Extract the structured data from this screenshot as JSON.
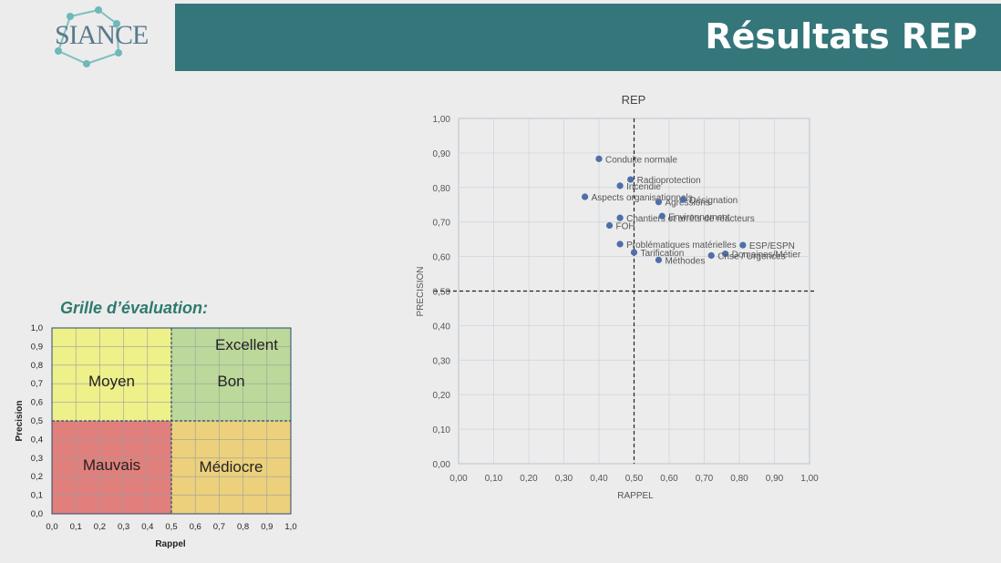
{
  "header": {
    "logo": "SIANCE",
    "title": "Résultats REP"
  },
  "colors": {
    "band": "#34767a",
    "point": "#4f6fa8"
  },
  "grille": {
    "title": "Grille d’évaluation:",
    "xlabel": "Rappel",
    "ylabel": "Precision",
    "ticks": [
      "0,0",
      "0,1",
      "0,2",
      "0,3",
      "0,4",
      "0,5",
      "0,6",
      "0,7",
      "0,8",
      "0,9",
      "1,0"
    ],
    "zones": {
      "excellent": "Excellent",
      "moyen": "Moyen",
      "bon": "Bon",
      "mauvais": "Mauvais",
      "mediocre": "Médiocre"
    },
    "zone_colors": {
      "moyen": "#eef08a",
      "bon": "#bcd89a",
      "mauvais": "#e07f7c",
      "mediocre": "#ecd07c"
    }
  },
  "chart_data": {
    "type": "scatter",
    "title": "REP",
    "xlabel": "RAPPEL",
    "ylabel": "PRECISION",
    "xlim": [
      0,
      1
    ],
    "ylim": [
      0,
      1
    ],
    "ticks": [
      "0,00",
      "0,10",
      "0,20",
      "0,30",
      "0,40",
      "0,50",
      "0,60",
      "0,70",
      "0,80",
      "0,90",
      "1,00"
    ],
    "thresholds": {
      "x": 0.5,
      "y": 0.5
    },
    "grid": true,
    "points": [
      {
        "label": "Conduite normale",
        "x": 0.4,
        "y": 0.883
      },
      {
        "label": "Radioprotection",
        "x": 0.49,
        "y": 0.823
      },
      {
        "label": "Incendie",
        "x": 0.46,
        "y": 0.805
      },
      {
        "label": "Aspects organisationnels",
        "x": 0.36,
        "y": 0.773
      },
      {
        "label": "Agressions",
        "x": 0.57,
        "y": 0.758
      },
      {
        "label": "Désignation",
        "x": 0.64,
        "y": 0.765
      },
      {
        "label": "Chantiers et arrêts de réacteurs",
        "x": 0.46,
        "y": 0.712
      },
      {
        "label": "FOH",
        "x": 0.43,
        "y": 0.69
      },
      {
        "label": "Environnement",
        "x": 0.58,
        "y": 0.717
      },
      {
        "label": "ESP/ESPN",
        "x": 0.81,
        "y": 0.633
      },
      {
        "label": "Domaines/Métier",
        "x": 0.76,
        "y": 0.608
      },
      {
        "label": "Crise / Urgences",
        "x": 0.72,
        "y": 0.603
      },
      {
        "label": "Problématiques matérielles",
        "x": 0.46,
        "y": 0.636
      },
      {
        "label": "Tarification",
        "x": 0.5,
        "y": 0.612
      },
      {
        "label": "Méthodes",
        "x": 0.57,
        "y": 0.59
      }
    ]
  }
}
